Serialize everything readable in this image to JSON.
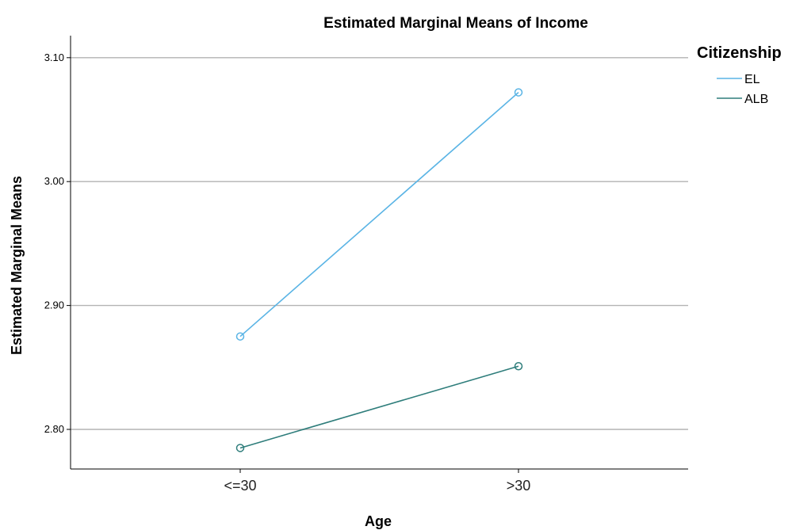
{
  "chart_data": {
    "type": "line",
    "title": "Estimated Marginal Means of Income",
    "xlabel": "Age",
    "ylabel": "Estimated Marginal Means",
    "categories": [
      "<=30",
      ">30"
    ],
    "ylim": [
      2.77,
      3.12
    ],
    "yticks": [
      2.8,
      2.9,
      3.0,
      3.1
    ],
    "ytick_labels": [
      "2.80",
      "2.90",
      "3.00",
      "3.10"
    ],
    "grid": true,
    "legend": {
      "title": "Citizenship",
      "placement": "top-right"
    },
    "series": [
      {
        "name": "EL",
        "values": [
          2.875,
          3.072
        ],
        "color": "#5ab4e5"
      },
      {
        "name": "ALB",
        "values": [
          2.785,
          2.851
        ],
        "color": "#2e7d7b"
      }
    ]
  }
}
